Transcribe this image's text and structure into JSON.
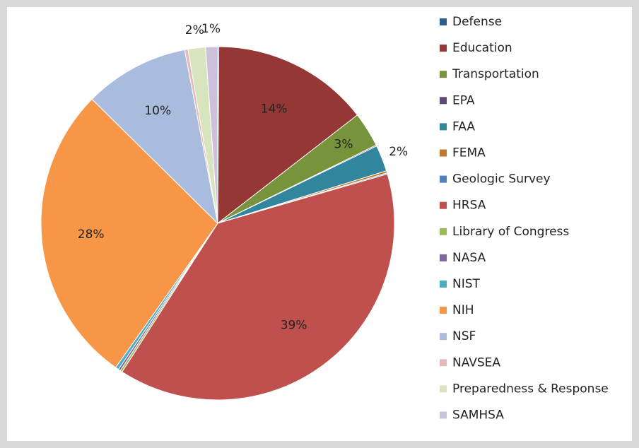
{
  "chart_data": {
    "type": "pie",
    "categories": [
      "Defense",
      "Education",
      "Transportation",
      "EPA",
      "FAA",
      "FEMA",
      "Geologic Survey",
      "HRSA",
      "Library of Congress",
      "NASA",
      "NIST",
      "NIH",
      "NSF",
      "NAVSEA",
      "Preparedness & Response",
      "SAMHSA"
    ],
    "values": [
      0.1,
      14.4,
      3.2,
      0.1,
      2.4,
      0.2,
      0.1,
      38.6,
      0.2,
      0.2,
      0.3,
      27.6,
      9.6,
      0.3,
      1.6,
      1.1
    ],
    "value_labels": [
      null,
      "14%",
      "3%",
      null,
      "2%",
      null,
      null,
      "39%",
      null,
      null,
      null,
      "28%",
      "10%",
      null,
      "2%",
      "1%"
    ],
    "colors": [
      "#2c5d8f",
      "#953735",
      "#77933c",
      "#5f497a",
      "#31859c",
      "#c0782e",
      "#4f81bd",
      "#c0504d",
      "#9bbb59",
      "#8064a2",
      "#4bacc6",
      "#f79646",
      "#a9bcde",
      "#e6b9b8",
      "#d7e4bd",
      "#ccc1da"
    ],
    "legend": "right"
  }
}
